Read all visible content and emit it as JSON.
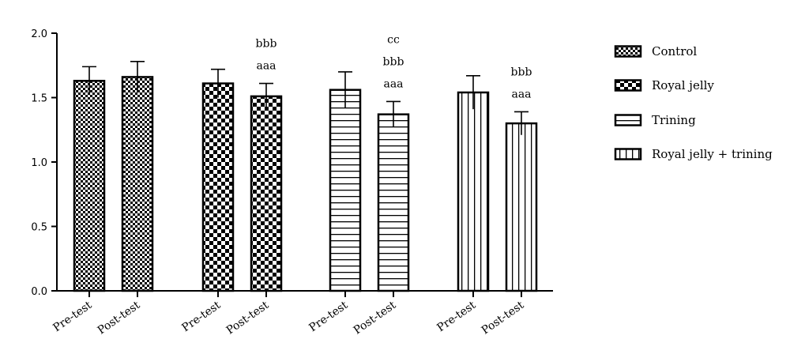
{
  "chart_data": {
    "type": "bar",
    "title": "",
    "xlabel": "",
    "ylabel": "",
    "ylim": [
      0,
      2.0
    ],
    "yticks": [
      "0.0",
      "0.5",
      "1.0",
      "1.5",
      "2.0"
    ],
    "grid": false,
    "legend_position": "right",
    "categories": [
      "Pre-test",
      "Post-test"
    ],
    "series": [
      {
        "name": "Control",
        "pattern": "checker-fine",
        "values": [
          1.63,
          1.66
        ],
        "errors": [
          0.11,
          0.12
        ]
      },
      {
        "name": "Royal jelly",
        "pattern": "checker-coarse",
        "values": [
          1.61,
          1.51
        ],
        "errors": [
          0.11,
          0.1
        ]
      },
      {
        "name": "Trining",
        "pattern": "horizontal-lines",
        "values": [
          1.56,
          1.37
        ],
        "errors": [
          0.14,
          0.1
        ]
      },
      {
        "name": "Royal jelly + trining",
        "pattern": "vertical-lines",
        "values": [
          1.54,
          1.3
        ],
        "errors": [
          0.13,
          0.09
        ]
      }
    ],
    "annotations": [
      {
        "series": 1,
        "bar": 1,
        "labels": [
          "aaa",
          "bbb"
        ]
      },
      {
        "series": 2,
        "bar": 1,
        "labels": [
          "aaa",
          "bbb",
          "cc"
        ]
      },
      {
        "series": 3,
        "bar": 1,
        "labels": [
          "aaa",
          "bbb"
        ]
      }
    ],
    "colors": {
      "ink": "#000000",
      "background": "#ffffff"
    }
  }
}
